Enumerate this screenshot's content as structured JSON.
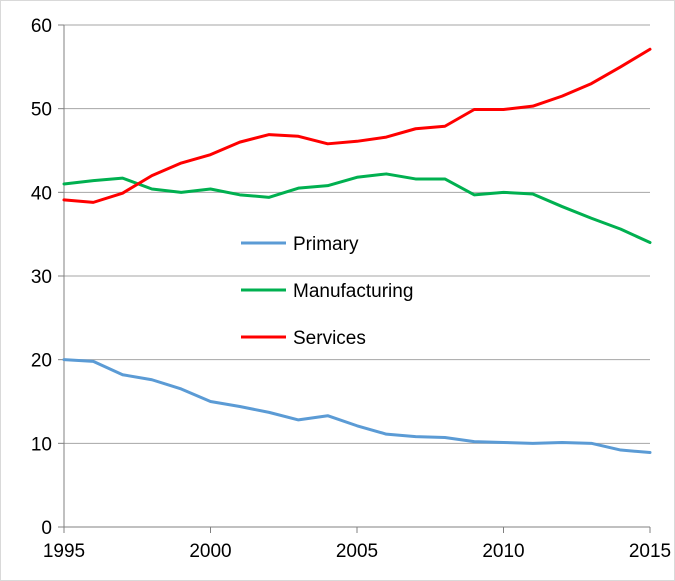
{
  "chart_data": {
    "type": "line",
    "title": "",
    "xlabel": "",
    "ylabel": "",
    "xlim": [
      1995,
      2015
    ],
    "ylim": [
      0,
      60
    ],
    "x_ticks": [
      1995,
      2000,
      2005,
      2010,
      2015
    ],
    "y_ticks": [
      0,
      10,
      20,
      30,
      40,
      50,
      60
    ],
    "grid": "horizontal",
    "legend_position": "center",
    "x": [
      1995,
      1996,
      1997,
      1998,
      1999,
      2000,
      2001,
      2002,
      2003,
      2004,
      2005,
      2006,
      2007,
      2008,
      2009,
      2010,
      2011,
      2012,
      2013,
      2014,
      2015
    ],
    "series": [
      {
        "name": "Primary",
        "color": "#5b9bd5",
        "values": [
          20.0,
          19.8,
          18.2,
          17.6,
          16.5,
          15.0,
          14.4,
          13.7,
          12.8,
          13.3,
          12.1,
          11.1,
          10.8,
          10.7,
          10.2,
          10.1,
          10.0,
          10.1,
          10.0,
          9.2,
          8.9
        ]
      },
      {
        "name": "Manufacturing",
        "color": "#00b050",
        "values": [
          41.0,
          41.4,
          41.7,
          40.4,
          40.0,
          40.4,
          39.7,
          39.4,
          40.5,
          40.8,
          41.8,
          42.2,
          41.6,
          41.6,
          39.7,
          40.0,
          39.8,
          38.3,
          36.9,
          35.6,
          34.0
        ]
      },
      {
        "name": "Services",
        "color": "#ff0000",
        "values": [
          39.1,
          38.8,
          39.9,
          42.0,
          43.5,
          44.5,
          46.0,
          46.9,
          46.7,
          45.8,
          46.1,
          46.6,
          47.6,
          47.9,
          49.9,
          49.9,
          50.3,
          51.5,
          53.0,
          55.0,
          57.1
        ]
      }
    ]
  },
  "style": {
    "axis_color": "#808080",
    "grid_color": "#a6a6a6",
    "frame_color": "#d9d9d9"
  }
}
